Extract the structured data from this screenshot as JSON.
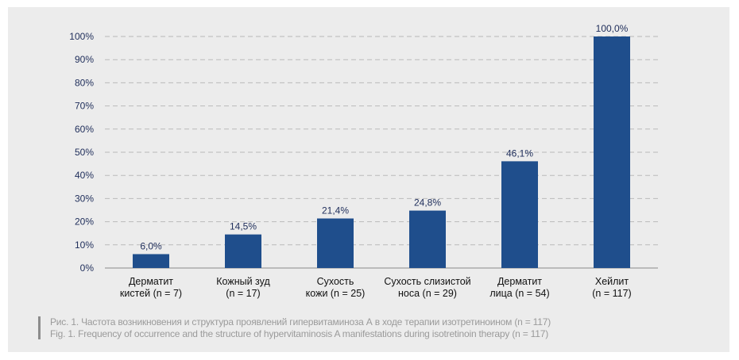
{
  "chart_data": {
    "type": "bar",
    "categories": [
      [
        "Дерматит",
        "кистей (n = 7)"
      ],
      [
        "Кожный зуд",
        "(n = 17)"
      ],
      [
        "Сухость",
        "кожи (n =  25)"
      ],
      [
        "Сухость слизистой",
        "носа (n = 29)"
      ],
      [
        "Дерматит",
        "лица (n = 54)"
      ],
      [
        "Хейлит",
        "(n = 117)"
      ]
    ],
    "values": [
      6.0,
      14.5,
      21.4,
      24.8,
      46.1,
      100.0
    ],
    "data_labels": [
      "6,0%",
      "14,5%",
      "21,4%",
      "24,8%",
      "46,1%",
      "100,0%"
    ],
    "y_ticks": [
      "0%",
      "10%",
      "20%",
      "30%",
      "40%",
      "50%",
      "60%",
      "70%",
      "80%",
      "90%",
      "100%"
    ],
    "ylim": [
      0,
      100
    ],
    "grid": true,
    "bar_color": "#1f4e8c"
  },
  "caption": {
    "ru": "Рис. 1. Частота возникновения и структура проявлений гипервитаминоза А в ходе терапии изотретиноином (n = 117)",
    "en": "Fig. 1. Frequency of occurrence and the structure of hypervitaminosis A manifestations during isotretinoin therapy (n = 117)"
  },
  "colors": {
    "panel_background": "#ececec",
    "grid": "#b9b9b9",
    "axis_text": "#1e2d5a",
    "caption_text": "#9a9a9a"
  }
}
